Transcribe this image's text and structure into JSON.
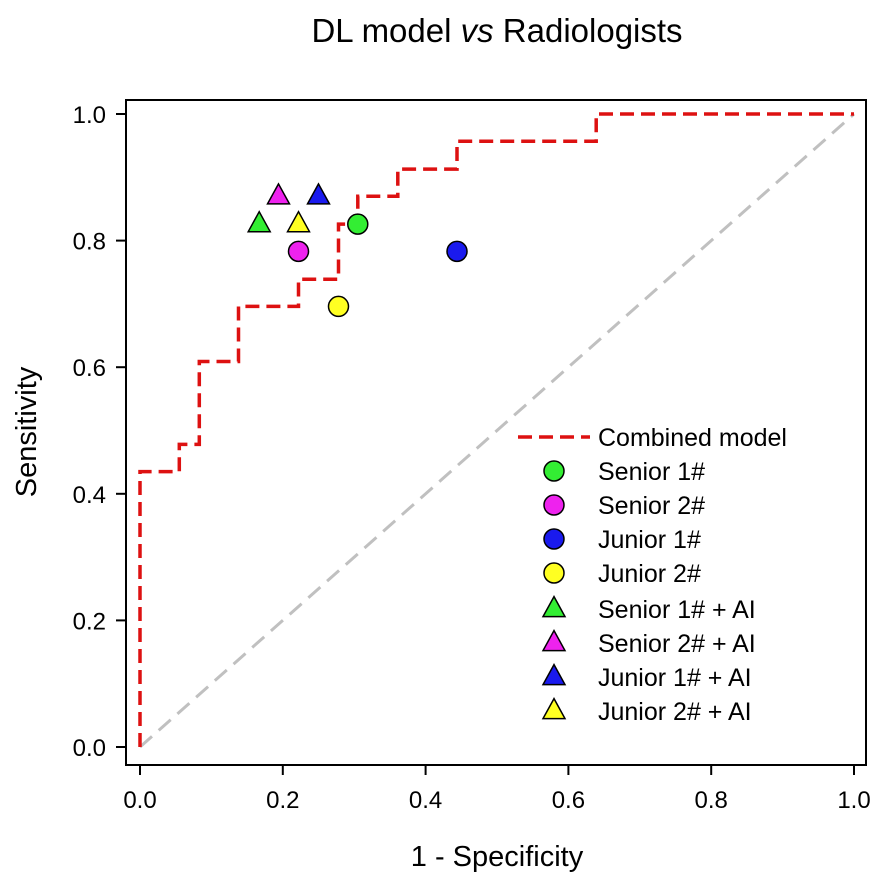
{
  "chart_data": {
    "type": "scatter",
    "title_prefix": "DL model ",
    "title_vs": "vs",
    "title_suffix": " Radiologists",
    "xlabel": "1 - Specificity",
    "ylabel": "Sensitivity",
    "xlim": [
      0.0,
      1.0
    ],
    "ylim": [
      0.0,
      1.0
    ],
    "xticks": [
      "0.0",
      "0.2",
      "0.4",
      "0.6",
      "0.8",
      "1.0"
    ],
    "yticks": [
      "0.0",
      "0.2",
      "0.4",
      "0.6",
      "0.8",
      "1.0"
    ],
    "legend_position": "bottom-right",
    "diagonal": {
      "color": "#c0c0c0",
      "from": [
        0,
        0
      ],
      "to": [
        1,
        1
      ]
    },
    "roc_curve": {
      "name": "Combined model",
      "color": "#dd1111",
      "style": "dashed",
      "points": [
        [
          0,
          0
        ],
        [
          0,
          0.435
        ],
        [
          0.055,
          0.435
        ],
        [
          0.055,
          0.478
        ],
        [
          0.083,
          0.478
        ],
        [
          0.083,
          0.609
        ],
        [
          0.138,
          0.609
        ],
        [
          0.138,
          0.696
        ],
        [
          0.222,
          0.696
        ],
        [
          0.222,
          0.739
        ],
        [
          0.278,
          0.739
        ],
        [
          0.278,
          0.826
        ],
        [
          0.305,
          0.826
        ],
        [
          0.305,
          0.87
        ],
        [
          0.361,
          0.87
        ],
        [
          0.361,
          0.913
        ],
        [
          0.444,
          0.913
        ],
        [
          0.444,
          0.957
        ],
        [
          0.639,
          0.957
        ],
        [
          0.639,
          1.0
        ],
        [
          1.0,
          1.0
        ]
      ]
    },
    "readers": [
      {
        "name": "Senior 1#",
        "marker": "circle",
        "color": "#33ee33",
        "x": 0.305,
        "y": 0.826
      },
      {
        "name": "Senior 2#",
        "marker": "circle",
        "color": "#ee22ee",
        "x": 0.222,
        "y": 0.783
      },
      {
        "name": "Junior 1#",
        "marker": "circle",
        "color": "#1a1aee",
        "x": 0.444,
        "y": 0.783
      },
      {
        "name": "Junior 2#",
        "marker": "circle",
        "color": "#ffff22",
        "x": 0.278,
        "y": 0.696
      },
      {
        "name": "Senior 1# + AI",
        "marker": "triangle",
        "color": "#33ee33",
        "x": 0.167,
        "y": 0.826
      },
      {
        "name": "Senior 2# + AI",
        "marker": "triangle",
        "color": "#ee22ee",
        "x": 0.194,
        "y": 0.87
      },
      {
        "name": "Junior 1# + AI",
        "marker": "triangle",
        "color": "#1a1aee",
        "x": 0.25,
        "y": 0.87
      },
      {
        "name": "Junior 2# + AI",
        "marker": "triangle",
        "color": "#ffff22",
        "x": 0.222,
        "y": 0.826
      }
    ]
  }
}
